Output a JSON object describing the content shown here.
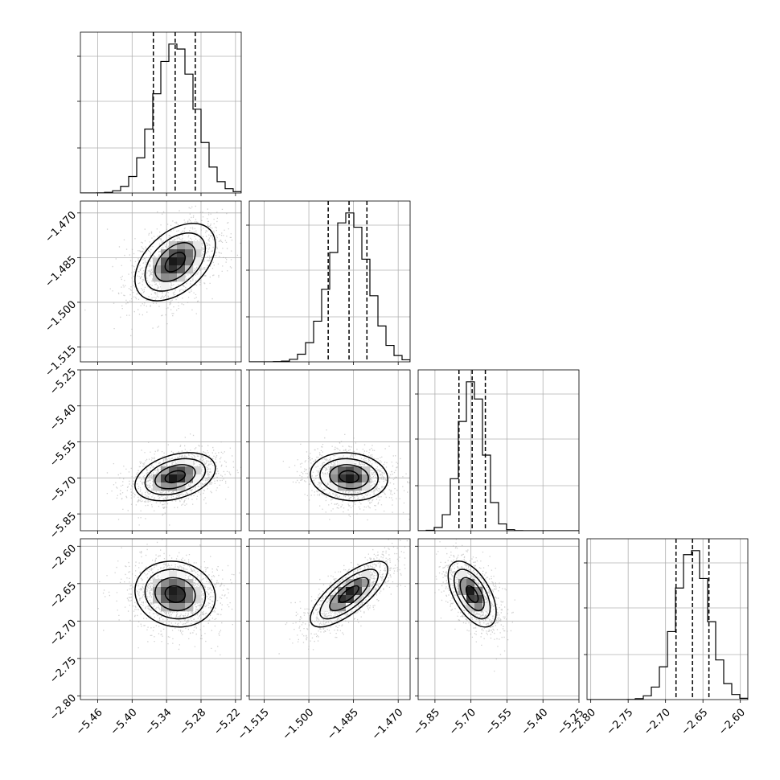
{
  "chart_data": {
    "type": "corner",
    "title": "",
    "n_params": 4,
    "params": [
      {
        "label": "",
        "mean": -5.325,
        "sigma": 0.035,
        "range": [
          -5.49,
          -5.21
        ],
        "ticks": [
          -5.46,
          -5.4,
          -5.34,
          -5.28,
          -5.22
        ],
        "tick_labels": [
          "−5.46",
          "−5.40",
          "−5.34",
          "−5.28",
          "−5.22"
        ],
        "quantiles": [
          -5.363,
          -5.325,
          -5.29
        ]
      },
      {
        "label": "",
        "mean": -1.4865,
        "sigma": 0.0065,
        "range": [
          -1.52,
          -1.466
        ],
        "ticks": [
          -1.515,
          -1.5,
          -1.485,
          -1.47
        ],
        "tick_labels": [
          "−1.515",
          "−1.500",
          "−1.485",
          "−1.470"
        ],
        "quantiles": [
          -1.4935,
          -1.4865,
          -1.4805
        ]
      },
      {
        "label": "",
        "mean": -5.695,
        "sigma": 0.05,
        "range": [
          -5.92,
          -5.25
        ],
        "ticks": [
          -5.85,
          -5.7,
          -5.55,
          -5.4,
          -5.25
        ],
        "tick_labels": [
          "−5.85",
          "−5.70",
          "−5.55",
          "−5.40",
          "−5.25"
        ],
        "quantiles": [
          -5.75,
          -5.695,
          -5.64
        ]
      },
      {
        "label": "",
        "mean": -2.664,
        "sigma": 0.022,
        "range": [
          -2.805,
          -2.59
        ],
        "ticks": [
          -2.8,
          -2.75,
          -2.7,
          -2.65,
          -2.6
        ],
        "tick_labels": [
          "−2.80",
          "−2.75",
          "−2.70",
          "−2.65",
          "−2.60"
        ],
        "quantiles": [
          -2.686,
          -2.664,
          -2.642
        ]
      }
    ],
    "correlations": [
      [
        0,
        1,
        0.45
      ],
      [
        0,
        2,
        0.35
      ],
      [
        0,
        3,
        -0.1
      ],
      [
        1,
        2,
        -0.1
      ],
      [
        1,
        3,
        0.75
      ],
      [
        2,
        3,
        -0.55
      ]
    ],
    "contour_levels_sigma": [
      0.5,
      1.0,
      1.5,
      2.0
    ],
    "grid": true,
    "histogram_bins": 20,
    "colors": {
      "line": "#000000",
      "grid": "#b0b0b0",
      "points": "#9a9a9a"
    }
  }
}
